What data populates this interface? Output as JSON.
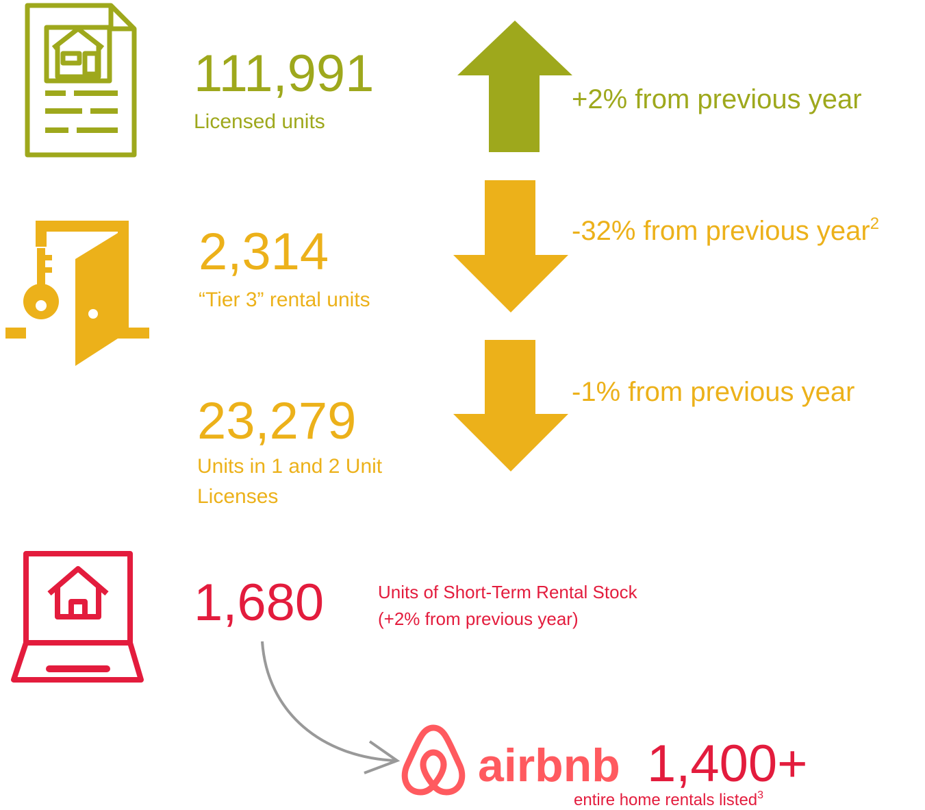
{
  "rows": [
    {
      "value": "111,991",
      "label": [
        "Licensed units"
      ],
      "change": "+2% from previous year"
    },
    {
      "value": "2,314",
      "label": [
        "“Tier 3” rental units"
      ],
      "change": "-32% from previous year",
      "footnote": "2"
    },
    {
      "value": "23,279",
      "label": [
        "Units in 1 and 2 Unit",
        "Licenses"
      ],
      "change": "-1% from previous year"
    }
  ],
  "short_term": {
    "value": "1,680",
    "label": [
      "Units of Short-Term Rental Stock",
      "(+2% from previous year)"
    ]
  },
  "airbnb": {
    "brand": "airbnb",
    "value": "1,400+",
    "label": "entire home rentals listed",
    "footnote": "3"
  }
}
